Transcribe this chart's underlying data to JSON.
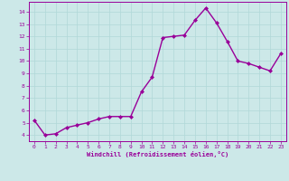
{
  "x": [
    0,
    1,
    2,
    3,
    4,
    5,
    6,
    7,
    8,
    9,
    10,
    11,
    12,
    13,
    14,
    15,
    16,
    17,
    18,
    19,
    20,
    21,
    22,
    23
  ],
  "y": [
    5.2,
    4.0,
    4.1,
    4.6,
    4.8,
    5.0,
    5.3,
    5.5,
    5.5,
    5.5,
    7.5,
    8.7,
    11.9,
    12.0,
    12.1,
    13.3,
    14.3,
    13.1,
    11.6,
    10.0,
    9.8,
    9.5,
    9.2,
    10.6
  ],
  "line_color": "#990099",
  "marker": "D",
  "marker_size": 2,
  "bg_color": "#cce8e8",
  "grid_color": "#b0d8d8",
  "xlabel": "Windchill (Refroidissement éolien,°C)",
  "xlabel_color": "#990099",
  "tick_color": "#990099",
  "ylim": [
    3.5,
    14.8
  ],
  "xlim": [
    -0.5,
    23.5
  ],
  "yticks": [
    4,
    5,
    6,
    7,
    8,
    9,
    10,
    11,
    12,
    13,
    14
  ],
  "xticks": [
    0,
    1,
    2,
    3,
    4,
    5,
    6,
    7,
    8,
    9,
    10,
    11,
    12,
    13,
    14,
    15,
    16,
    17,
    18,
    19,
    20,
    21,
    22,
    23
  ],
  "line_width": 1.0
}
